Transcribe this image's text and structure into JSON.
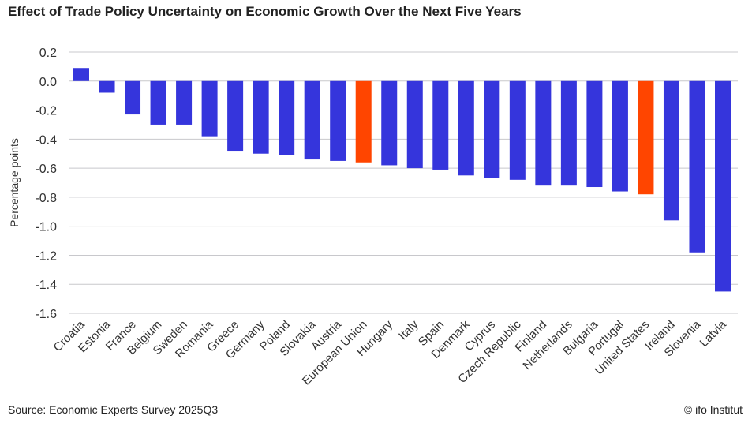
{
  "chart_data": {
    "type": "bar",
    "title": "Effect of Trade Policy Uncertainty on Economic Growth Over the Next Five Years",
    "xlabel": "",
    "ylabel": "Percentage points",
    "ylim": [
      -1.6,
      0.2
    ],
    "yticks": [
      0.2,
      0.0,
      -0.2,
      -0.4,
      -0.6,
      -0.8,
      -1.0,
      -1.2,
      -1.4,
      -1.6
    ],
    "grid": true,
    "categories": [
      "Croatia",
      "Estonia",
      "France",
      "Belgium",
      "Sweden",
      "Romania",
      "Greece",
      "Germany",
      "Poland",
      "Slovakia",
      "Austria",
      "European Union",
      "Hungary",
      "Italy",
      "Spain",
      "Denmark",
      "Cyprus",
      "Czech Republic",
      "Finland",
      "Netherlands",
      "Bulgaria",
      "Portugal",
      "United States",
      "Ireland",
      "Slovenia",
      "Latvia"
    ],
    "values": [
      0.09,
      -0.08,
      -0.23,
      -0.3,
      -0.3,
      -0.38,
      -0.48,
      -0.5,
      -0.51,
      -0.54,
      -0.55,
      -0.56,
      -0.58,
      -0.6,
      -0.61,
      -0.65,
      -0.67,
      -0.68,
      -0.72,
      -0.72,
      -0.73,
      -0.76,
      -0.78,
      -0.96,
      -1.18,
      -1.45
    ],
    "highlighted": [
      "European Union",
      "United States"
    ],
    "colors": {
      "default": "#3535DC",
      "highlight": "#FF4500",
      "grid": "#C8C8CC"
    }
  },
  "footer": {
    "source": "Source: Economic Experts Survey 2025Q3",
    "credit": "© ifo Institut"
  }
}
